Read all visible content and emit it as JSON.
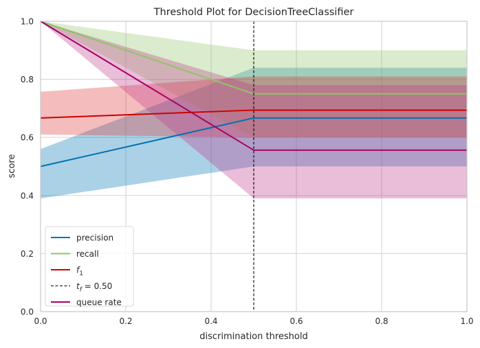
{
  "chart_data": {
    "type": "line",
    "title": "Threshold Plot for DecisionTreeClassifier",
    "xlabel": "discrimination threshold",
    "ylabel": "score",
    "xlim": [
      0,
      1
    ],
    "ylim": [
      0,
      1
    ],
    "x_ticks": [
      "0.0",
      "0.2",
      "0.4",
      "0.6",
      "0.8",
      "1.0"
    ],
    "y_ticks": [
      "0.0",
      "0.2",
      "0.4",
      "0.6",
      "0.8",
      "1.0"
    ],
    "grid": true,
    "legend_position": "lower-left",
    "x": [
      0,
      0.5,
      1.0
    ],
    "series": [
      {
        "name": "precision",
        "color": "#0072b2",
        "band_color": "#0072b2",
        "values": [
          0.5,
          0.667,
          0.667
        ],
        "lower": [
          0.39,
          0.5,
          0.5
        ],
        "upper": [
          0.56,
          0.84,
          0.84
        ]
      },
      {
        "name": "recall",
        "color": "#8ec567",
        "band_color": "#8ec567",
        "values": [
          1.0,
          0.75,
          0.75
        ],
        "lower": [
          1.0,
          0.6,
          0.6
        ],
        "upper": [
          1.0,
          0.9,
          0.9
        ]
      },
      {
        "name": "f1",
        "legend_label": "f",
        "legend_sub": "1",
        "color": "#cc0000",
        "band_color": "#dd3333",
        "values": [
          0.667,
          0.694,
          0.694
        ],
        "lower": [
          0.61,
          0.6,
          0.6
        ],
        "upper": [
          0.757,
          0.81,
          0.81
        ]
      },
      {
        "name": "queue rate",
        "color": "#a60062",
        "band_color": "#c0388c",
        "values": [
          1.0,
          0.556,
          0.556
        ],
        "lower": [
          1.0,
          0.39,
          0.39
        ],
        "upper": [
          1.0,
          0.78,
          0.78
        ]
      }
    ],
    "threshold": {
      "value": 0.5,
      "legend_label": "t",
      "legend_sub": "f",
      "legend_suffix": " = 0.50",
      "color": "#000000"
    }
  }
}
